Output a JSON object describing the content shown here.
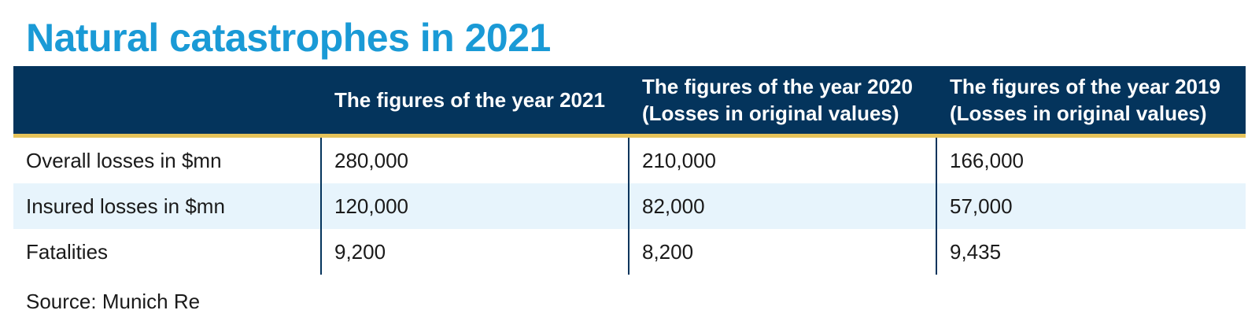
{
  "title": "Natural catastrophes in 2021",
  "colors": {
    "title": "#1a9ad6",
    "header_bg": "#04345c",
    "header_rule": "#e6c35a",
    "alt_row": "#e7f4fc"
  },
  "chart_data": {
    "type": "table",
    "title": "Natural catastrophes in 2021",
    "columns": [
      "",
      "The figures of the year 2021",
      "The figures of the year 2020\n(Losses in original values)",
      "The figures of the year 2019\n(Losses in original values)"
    ],
    "rows": [
      {
        "label": "Overall losses in $mn",
        "values": [
          "280,000",
          "210,000",
          "166,000"
        ]
      },
      {
        "label": "Insured losses in $mn",
        "values": [
          "120,000",
          "82,000",
          "57,000"
        ]
      },
      {
        "label": "Fatalities",
        "values": [
          "9,200",
          "8,200",
          "9,435"
        ]
      }
    ]
  },
  "source": "Source: Munich Re"
}
